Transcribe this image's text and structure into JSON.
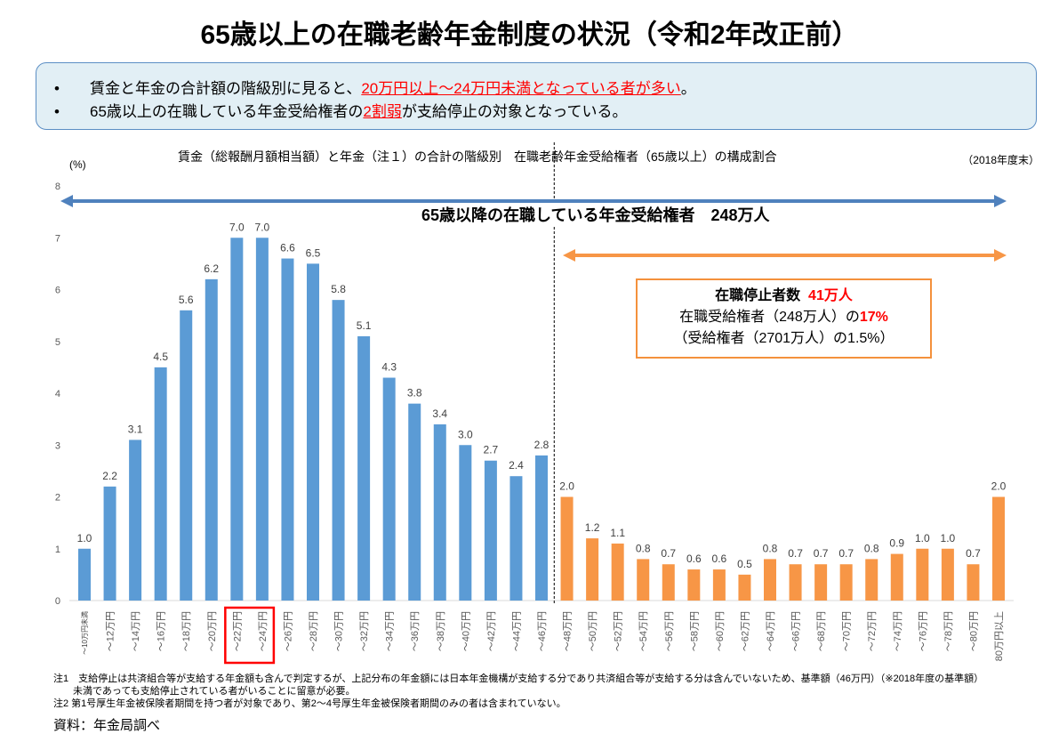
{
  "title": "65歳以上の在職老齢年金制度の状況（令和2年改正前）",
  "summary": {
    "bullet": "•",
    "line1_pre": "賃金と年金の合計額の階級別に見ると、",
    "line1_hl": "20万円以上～24万円未満となっている者が多い",
    "line1_post": "。",
    "line2_pre": "65歳以上の在職している年金受給権者の",
    "line2_hl": "2割弱",
    "line2_post": "が支給停止の対象となっている。"
  },
  "subtitle": "賃金（総報酬月額相当額）と年金（注１）の合計の階級別　在職老齢年金受給権者（65歳以上）の構成割合",
  "as_of": "（2018年度末）",
  "annotations": {
    "total": "65歳以降の在職している年金受給権者　248万人",
    "box_line1_pre": "在職停止者数",
    "box_line1_red": "41万人",
    "box_line2_pre": "在職受給権者（248万人）の",
    "box_line2_red": "17%",
    "box_line3": "（受給権者（2701万人）の1.5%）"
  },
  "notes": [
    "注1　支給停止は共済組合等が支給する年金額も含んで判定するが、上記分布の年金額には日本年金機構が支給する分であり共済組合等が支給する分は含んでいないため、基準額（46万円）（※2018年度の基準額）",
    "　　未満であっても支給停止されている者がいることに留意が必要。",
    "注2 第1号厚生年金被保険者期間を持つ者が対象であり、第2～4号厚生年金被保険者期間のみの者は含まれていない。"
  ],
  "source": "資料：年金局調べ",
  "colors": {
    "below_threshold": "#5b9bd5",
    "above_threshold": "#f79646",
    "highlight": "#ff0000",
    "arrow_blue": "#4f81bd"
  },
  "chart_data": {
    "type": "bar",
    "ylabel": "(%)",
    "ylim": [
      0,
      8
    ],
    "yticks": [
      0,
      1,
      2,
      3,
      4,
      5,
      6,
      7,
      8
    ],
    "grid": false,
    "categories": [
      "～10万円未満",
      "～12万円",
      "～14万円",
      "～16万円",
      "～18万円",
      "～20万円",
      "～22万円",
      "～24万円",
      "～26万円",
      "～28万円",
      "～30万円",
      "～32万円",
      "～34万円",
      "～36万円",
      "～38万円",
      "～40万円",
      "～42万円",
      "～44万円",
      "～46万円",
      "～48万円",
      "～50万円",
      "～52万円",
      "～54万円",
      "～56万円",
      "～58万円",
      "～60万円",
      "～62万円",
      "～64万円",
      "～66万円",
      "～68万円",
      "～70万円",
      "～72万円",
      "～74万円",
      "～76万円",
      "～78万円",
      "～80万円",
      "80万円以上"
    ],
    "values": [
      1.0,
      2.2,
      3.1,
      4.5,
      5.6,
      6.2,
      7.0,
      7.0,
      6.6,
      6.5,
      5.8,
      5.1,
      4.3,
      3.8,
      3.4,
      3.0,
      2.7,
      2.4,
      2.8,
      2.0,
      1.2,
      1.1,
      0.8,
      0.7,
      0.6,
      0.6,
      0.5,
      0.8,
      0.7,
      0.7,
      0.7,
      0.8,
      0.9,
      1.0,
      1.0,
      0.7,
      2.0
    ],
    "threshold_index": 19,
    "highlighted_categories": [
      "～22万円",
      "～24万円"
    ]
  }
}
